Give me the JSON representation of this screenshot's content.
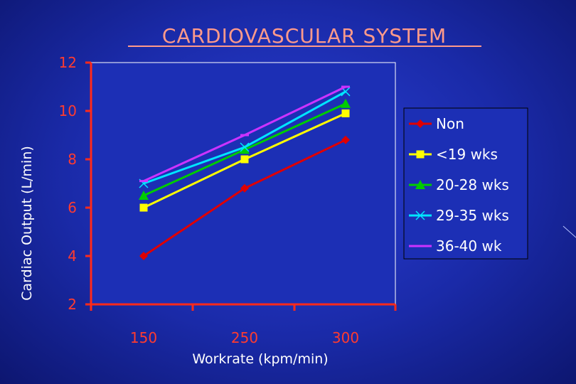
{
  "chart_data": {
    "type": "line",
    "title": "CARDIOVASCULAR SYSTEM",
    "xlabel": "Workrate (kpm/min)",
    "ylabel": "Cardiac Output (L/min)",
    "categories": [
      "150",
      "250",
      "300"
    ],
    "ylim": [
      2,
      12
    ],
    "yticks": [
      "2",
      "4",
      "6",
      "8",
      "10",
      "12"
    ],
    "grid": false,
    "legend_position": "right",
    "series": [
      {
        "name": "Non",
        "values": [
          4.0,
          6.8,
          8.8
        ],
        "color": "#e00000",
        "marker": "diamond"
      },
      {
        "name": "<19 wks",
        "values": [
          6.0,
          8.0,
          9.9
        ],
        "color": "#ffff00",
        "marker": "square"
      },
      {
        "name": "20-28 wks",
        "values": [
          6.5,
          8.4,
          10.3
        ],
        "color": "#00cc00",
        "marker": "triangle"
      },
      {
        "name": "29-35 wks",
        "values": [
          7.0,
          8.5,
          10.8
        ],
        "color": "#00e5ff",
        "marker": "x"
      },
      {
        "name": "36-40 wk",
        "values": [
          7.1,
          9.0,
          11.0
        ],
        "color": "#cc33ff",
        "marker": "dash"
      }
    ],
    "colors": {
      "plot_background": "#1c2fb5",
      "plot_border": "#ffffff",
      "axis": "#ff2a1a",
      "tick_labels": "#ff3b2f",
      "title": "#ff9a8a"
    }
  }
}
